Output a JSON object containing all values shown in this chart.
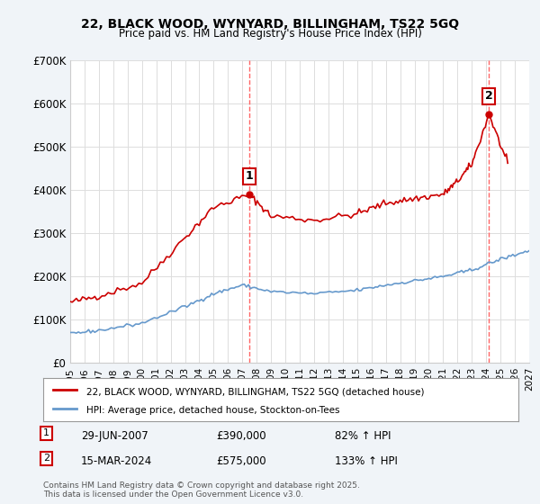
{
  "title": "22, BLACK WOOD, WYNYARD, BILLINGHAM, TS22 5GQ",
  "subtitle": "Price paid vs. HM Land Registry's House Price Index (HPI)",
  "xlabel": "",
  "ylabel": "",
  "ylim": [
    0,
    700000
  ],
  "xlim": [
    1995,
    2027
  ],
  "yticks": [
    0,
    100000,
    200000,
    300000,
    400000,
    500000,
    600000,
    700000
  ],
  "ytick_labels": [
    "£0",
    "£100K",
    "£200K",
    "£300K",
    "£400K",
    "£500K",
    "£600K",
    "£700K"
  ],
  "xticks": [
    1995,
    1996,
    1997,
    1998,
    1999,
    2000,
    2001,
    2002,
    2003,
    2004,
    2005,
    2006,
    2007,
    2008,
    2009,
    2010,
    2011,
    2012,
    2013,
    2014,
    2015,
    2016,
    2017,
    2018,
    2019,
    2020,
    2021,
    2022,
    2023,
    2024,
    2025,
    2026,
    2027
  ],
  "red_line_color": "#cc0000",
  "blue_line_color": "#6699cc",
  "vline_color": "#ff6666",
  "vline_style": "--",
  "vline_x": [
    2007.5,
    2024.2
  ],
  "point1_x": 2007.5,
  "point1_y": 390000,
  "point2_x": 2024.2,
  "point2_y": 575000,
  "point1_label": "1",
  "point2_label": "2",
  "legend_red": "22, BLACK WOOD, WYNYARD, BILLINGHAM, TS22 5GQ (detached house)",
  "legend_blue": "HPI: Average price, detached house, Stockton-on-Tees",
  "annotation1_num": "1",
  "annotation1_date": "29-JUN-2007",
  "annotation1_price": "£390,000",
  "annotation1_hpi": "82% ↑ HPI",
  "annotation2_num": "2",
  "annotation2_date": "15-MAR-2024",
  "annotation2_price": "£575,000",
  "annotation2_hpi": "133% ↑ HPI",
  "footer": "Contains HM Land Registry data © Crown copyright and database right 2025.\nThis data is licensed under the Open Government Licence v3.0.",
  "background_color": "#f0f4f8",
  "plot_bg_color": "#ffffff",
  "grid_color": "#dddddd"
}
